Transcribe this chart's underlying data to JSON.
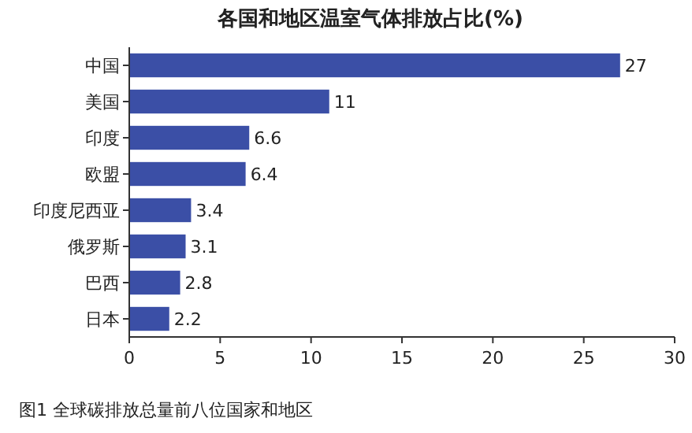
{
  "chart_data": {
    "type": "bar",
    "orientation": "horizontal",
    "title": "各国和地区温室气体排放占比(%)",
    "categories": [
      "中国",
      "美国",
      "印度",
      "欧盟",
      "印度尼西亚",
      "俄罗斯",
      "巴西",
      "日本"
    ],
    "values": [
      27,
      11,
      6.6,
      6.4,
      3.4,
      3.1,
      2.8,
      2.2
    ],
    "color": "#3b4fa6",
    "xlim": [
      0,
      30
    ],
    "xticks": [
      0,
      5,
      10,
      15,
      20,
      25,
      30
    ],
    "data_labels": true,
    "grid": false,
    "annotations": [
      "图1  全球碳排放总量前八位国家和地区"
    ]
  }
}
